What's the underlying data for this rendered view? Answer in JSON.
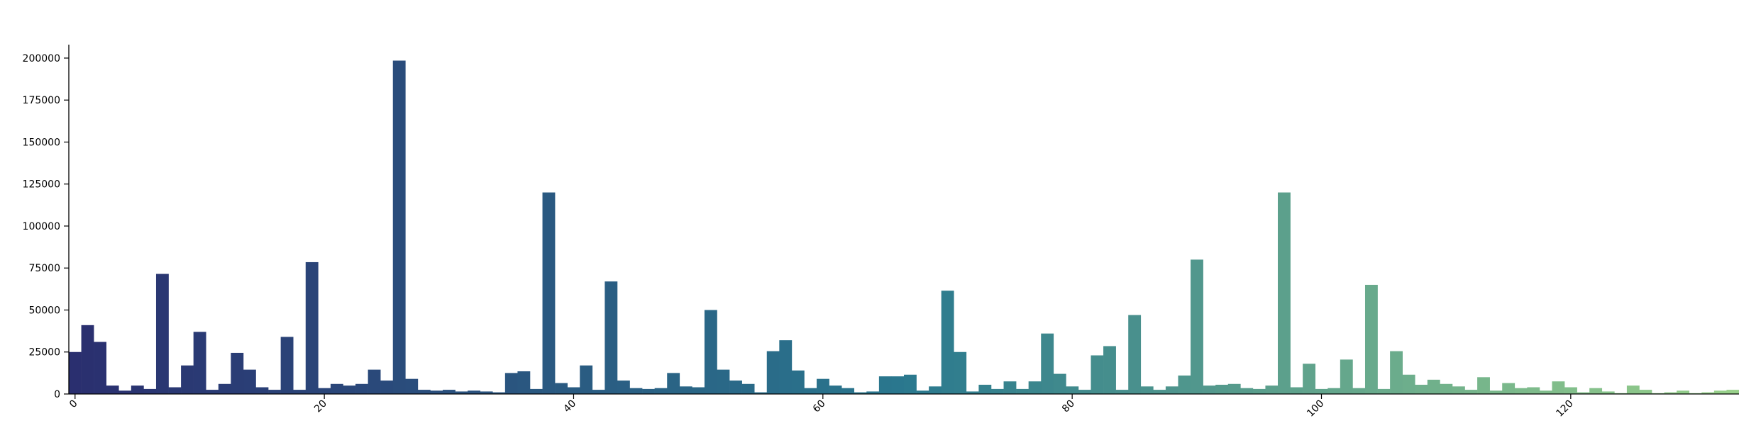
{
  "chart_data": {
    "type": "bar",
    "title": "",
    "xlabel": "",
    "ylabel": "",
    "xlim": [
      -0.5,
      133.5
    ],
    "ylim": [
      0,
      208000
    ],
    "grid": false,
    "legend": "none",
    "palette": {
      "start": "#2a2f6f",
      "mid": "#2a788e",
      "end": "#98d08a"
    },
    "x_ticks": [
      0,
      20,
      40,
      60,
      80,
      100,
      120
    ],
    "x_tick_labels": [
      "0",
      "20",
      "40",
      "60",
      "80",
      "100",
      "120"
    ],
    "y_ticks": [
      0,
      25000,
      50000,
      75000,
      100000,
      125000,
      150000,
      175000,
      200000
    ],
    "y_tick_labels": [
      "0",
      "25000",
      "50000",
      "75000",
      "100000",
      "125000",
      "150000",
      "175000",
      "200000"
    ],
    "x": [
      0,
      1,
      2,
      3,
      4,
      5,
      6,
      7,
      8,
      9,
      10,
      11,
      12,
      13,
      14,
      15,
      16,
      17,
      18,
      19,
      20,
      21,
      22,
      23,
      24,
      25,
      26,
      27,
      28,
      29,
      30,
      31,
      32,
      33,
      34,
      35,
      36,
      37,
      38,
      39,
      40,
      41,
      42,
      43,
      44,
      45,
      46,
      47,
      48,
      49,
      50,
      51,
      52,
      53,
      54,
      55,
      56,
      57,
      58,
      59,
      60,
      61,
      62,
      63,
      64,
      65,
      66,
      67,
      68,
      69,
      70,
      71,
      72,
      73,
      74,
      75,
      76,
      77,
      78,
      79,
      80,
      81,
      82,
      83,
      84,
      85,
      86,
      87,
      88,
      89,
      90,
      91,
      92,
      93,
      94,
      95,
      96,
      97,
      98,
      99,
      100,
      101,
      102,
      103,
      104,
      105,
      106,
      107,
      108,
      109,
      110,
      111,
      112,
      113,
      114,
      115,
      116,
      117,
      118,
      119,
      120,
      121,
      122,
      123,
      124,
      125,
      126,
      127,
      128,
      129,
      130,
      131,
      132,
      133
    ],
    "values": [
      25000,
      41000,
      31000,
      5000,
      2000,
      5000,
      3000,
      71500,
      4000,
      17000,
      37000,
      2500,
      6000,
      24500,
      14500,
      4000,
      2500,
      34000,
      2500,
      78500,
      3500,
      6000,
      5000,
      6000,
      14500,
      8000,
      198500,
      9000,
      2500,
      2000,
      2500,
      1500,
      2000,
      1500,
      1000,
      12500,
      13500,
      3000,
      120000,
      6500,
      4000,
      17000,
      2500,
      67000,
      8000,
      3500,
      3000,
      3500,
      12500,
      4500,
      4000,
      50000,
      14500,
      8000,
      6000,
      1000,
      25500,
      32000,
      14000,
      3500,
      9000,
      5000,
      3500,
      1000,
      1500,
      10500,
      10500,
      11500,
      2000,
      4500,
      61500,
      25000,
      1500,
      5500,
      3000,
      7500,
      3000,
      7500,
      36000,
      12000,
      4500,
      2500,
      23000,
      28500,
      2500,
      47000,
      4500,
      2500,
      4500,
      11000,
      80000,
      5000,
      5500,
      6000,
      3500,
      3000,
      5000,
      120000,
      4000,
      18000,
      3000,
      3500,
      20500,
      3500,
      65000,
      3000,
      25500,
      11500,
      5500,
      8500,
      6000,
      4500,
      2500,
      10000,
      2000,
      6500,
      3500,
      4000,
      2000,
      7500,
      4000,
      1000,
      3500,
      1500,
      500,
      5000,
      2500,
      500,
      1000,
      2000,
      500,
      1000,
      2000,
      2500
    ]
  }
}
